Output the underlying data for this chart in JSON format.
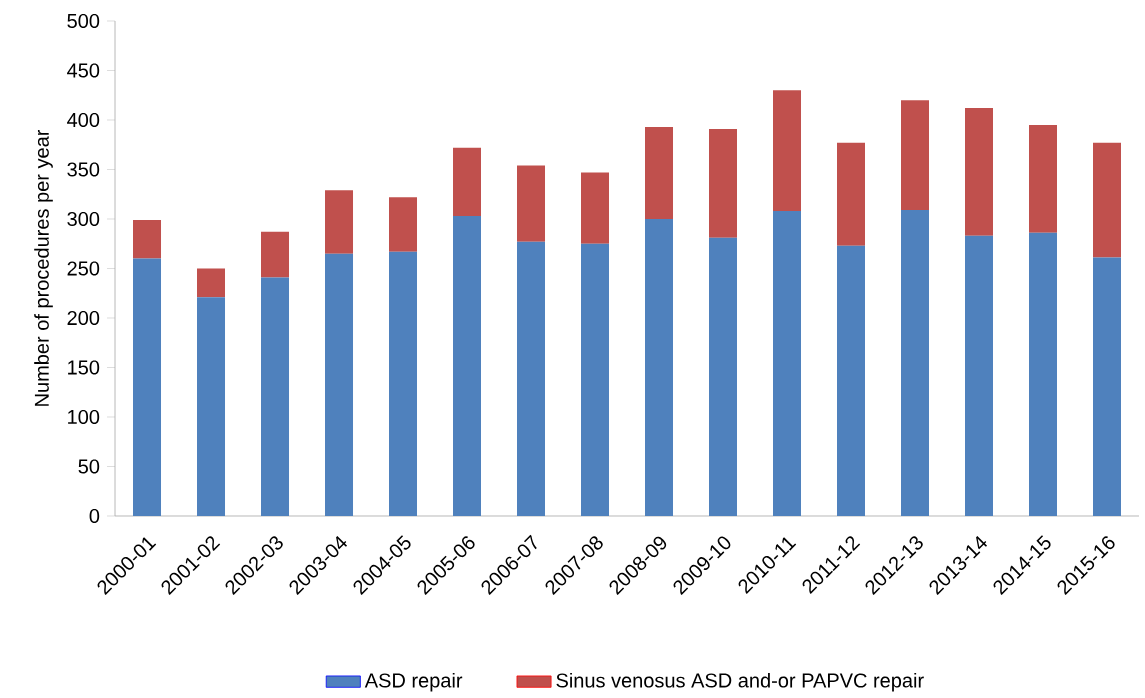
{
  "chart_data": {
    "type": "bar",
    "stacked": true,
    "ylabel": "Number of procedures per year",
    "categories": [
      "2000-01",
      "2001-02",
      "2002-03",
      "2003-04",
      "2004-05",
      "2005-06",
      "2006-07",
      "2007-08",
      "2008-09",
      "2009-10",
      "2010-11",
      "2011-12",
      "2012-13",
      "2013-14",
      "2014-15",
      "2015-16"
    ],
    "series": [
      {
        "name": "ASD repair",
        "color": "#4f81bd",
        "values": [
          260,
          221,
          241,
          265,
          267,
          303,
          277,
          275,
          300,
          281,
          308,
          273,
          309,
          283,
          286,
          261
        ]
      },
      {
        "name": "Sinus venosus ASD and-or PAPVC repair",
        "color": "#c0504d",
        "values": [
          39,
          29,
          46,
          64,
          55,
          69,
          77,
          72,
          93,
          110,
          122,
          104,
          111,
          129,
          109,
          116
        ]
      }
    ],
    "ylim": [
      0,
      500
    ],
    "yticks": [
      0,
      50,
      100,
      150,
      200,
      250,
      300,
      350,
      400,
      450,
      500
    ],
    "grid": false,
    "legend": "bottom"
  }
}
